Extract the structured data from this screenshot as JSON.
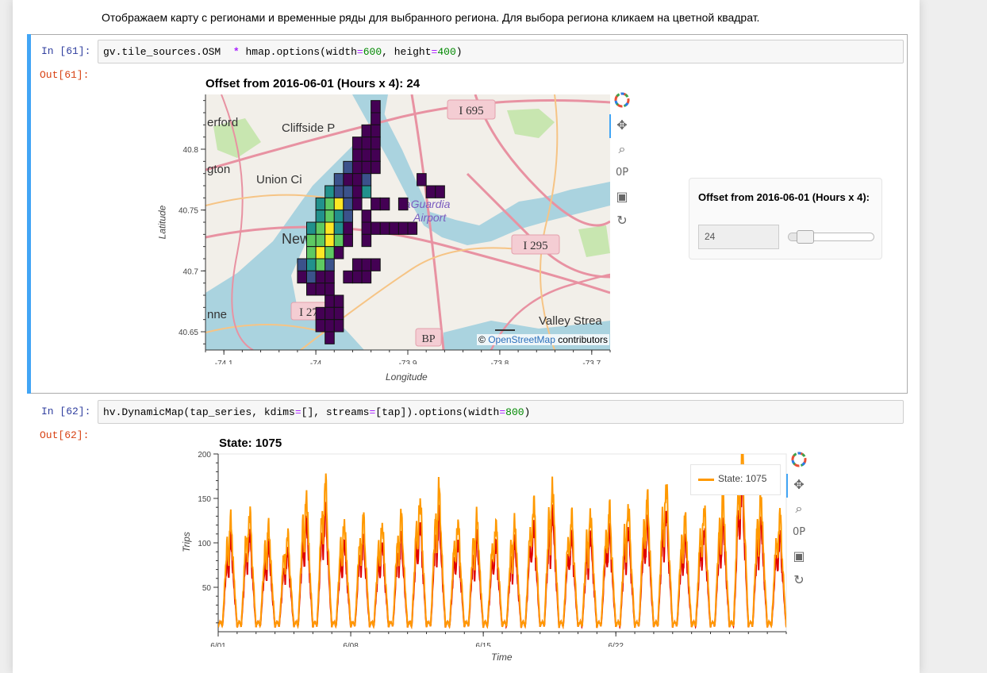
{
  "markdown": {
    "text": "Отображаем карту с регионами и временные ряды для выбранного региона. Для выбора региона кликаем на цветной квадрат."
  },
  "cell61": {
    "in_prompt": "In [61]:",
    "out_prompt": "Out[61]:",
    "code_parts": [
      "gv.tile_sources.OSM",
      "*",
      "hmap.options(width",
      "=",
      "600",
      ", height",
      "=",
      "400",
      ")"
    ]
  },
  "cell62": {
    "in_prompt": "In [62]:",
    "out_prompt": "Out[62]:",
    "code_parts": [
      "hv.DynamicMap(tap_series, kdims",
      "=",
      "[], streams",
      "=",
      "[tap]).options(width",
      "=",
      "800",
      ")"
    ]
  },
  "map_plot": {
    "title": "Offset from 2016-06-01 (Hours x 4): 24",
    "xlabel": "Longitude",
    "ylabel": "Latitude",
    "xticks": [
      "-74.1",
      "-74",
      "-73.9",
      "-73.8",
      "-73.7"
    ],
    "yticks": [
      "40.8",
      "40.75",
      "40.7",
      "40.65"
    ],
    "attribution_prefix": "©",
    "attribution_link": "OpenStreetMap",
    "attribution_suffix": "contributors",
    "map_labels": [
      "erford",
      "Cliffside P",
      "gton",
      "Union Ci",
      "New York",
      "LaGuardia",
      "Airport",
      "nne",
      "Valley Strea"
    ],
    "road_shields": [
      "I 695",
      "I 295",
      "I 27",
      "BP"
    ],
    "colors": {
      "water": "#aad3df",
      "land": "#f2efe9",
      "park": "#c8e6b0",
      "road": "#e892a2",
      "highway": "#f6c485"
    }
  },
  "widget": {
    "title": "Offset from 2016-06-01 (Hours x 4):",
    "value": "24",
    "slider_fraction": 0.13
  },
  "series_plot": {
    "title": "State: 1075",
    "xlabel": "Time",
    "ylabel": "Trips",
    "legend_label": "State: 1075"
  },
  "toolbar_icons": [
    "bokeh-logo-icon",
    "pan-icon",
    "box-zoom-icon",
    "wheel-zoom-icon",
    "save-icon",
    "reset-icon"
  ],
  "chart_data": [
    {
      "type": "heatmap",
      "title": "Offset from 2016-06-01 (Hours x 4): 24",
      "xlabel": "Longitude",
      "ylabel": "Latitude",
      "xlim": [
        -74.12,
        -73.68
      ],
      "ylim": [
        40.635,
        40.845
      ],
      "grid_step": 0.01,
      "palette": "viridis",
      "color_levels": [
        "#440154",
        "#3b528b",
        "#21918c",
        "#5ec962",
        "#fde725"
      ],
      "cells": [
        [
          -73.935,
          40.835,
          0
        ],
        [
          -73.935,
          40.825,
          0
        ],
        [
          -73.945,
          40.815,
          0
        ],
        [
          -73.935,
          40.815,
          0
        ],
        [
          -73.955,
          40.805,
          0
        ],
        [
          -73.945,
          40.805,
          0
        ],
        [
          -73.935,
          40.805,
          0
        ],
        [
          -73.955,
          40.795,
          0
        ],
        [
          -73.945,
          40.795,
          0
        ],
        [
          -73.935,
          40.795,
          0
        ],
        [
          -73.965,
          40.785,
          1
        ],
        [
          -73.955,
          40.785,
          0
        ],
        [
          -73.945,
          40.785,
          0
        ],
        [
          -73.935,
          40.785,
          0
        ],
        [
          -73.975,
          40.775,
          1
        ],
        [
          -73.965,
          40.775,
          0
        ],
        [
          -73.955,
          40.775,
          0
        ],
        [
          -73.945,
          40.775,
          1
        ],
        [
          -73.985,
          40.765,
          2
        ],
        [
          -73.975,
          40.765,
          1
        ],
        [
          -73.965,
          40.765,
          1
        ],
        [
          -73.955,
          40.765,
          0
        ],
        [
          -73.945,
          40.765,
          2
        ],
        [
          -73.885,
          40.775,
          0
        ],
        [
          -73.875,
          40.765,
          0
        ],
        [
          -73.865,
          40.765,
          0
        ],
        [
          -73.995,
          40.755,
          2
        ],
        [
          -73.985,
          40.755,
          3
        ],
        [
          -73.975,
          40.755,
          4
        ],
        [
          -73.965,
          40.755,
          1
        ],
        [
          -73.955,
          40.755,
          0
        ],
        [
          -73.935,
          40.755,
          0
        ],
        [
          -73.925,
          40.755,
          0
        ],
        [
          -73.905,
          40.755,
          0
        ],
        [
          -73.995,
          40.745,
          2
        ],
        [
          -73.985,
          40.745,
          3
        ],
        [
          -73.975,
          40.745,
          2
        ],
        [
          -73.965,
          40.745,
          1
        ],
        [
          -73.945,
          40.745,
          0
        ],
        [
          -74.005,
          40.735,
          2
        ],
        [
          -73.995,
          40.735,
          3
        ],
        [
          -73.985,
          40.735,
          4
        ],
        [
          -73.975,
          40.735,
          2
        ],
        [
          -73.965,
          40.735,
          0
        ],
        [
          -73.945,
          40.735,
          0
        ],
        [
          -73.935,
          40.735,
          0
        ],
        [
          -73.925,
          40.735,
          0
        ],
        [
          -73.915,
          40.735,
          0
        ],
        [
          -73.905,
          40.735,
          0
        ],
        [
          -73.895,
          40.735,
          0
        ],
        [
          -74.005,
          40.725,
          3
        ],
        [
          -73.995,
          40.725,
          3
        ],
        [
          -73.985,
          40.725,
          4
        ],
        [
          -73.975,
          40.725,
          3
        ],
        [
          -73.965,
          40.725,
          0
        ],
        [
          -73.945,
          40.725,
          0
        ],
        [
          -74.005,
          40.715,
          3
        ],
        [
          -73.995,
          40.715,
          4
        ],
        [
          -73.985,
          40.715,
          3
        ],
        [
          -73.975,
          40.715,
          0
        ],
        [
          -74.015,
          40.705,
          1
        ],
        [
          -74.005,
          40.705,
          2
        ],
        [
          -73.995,
          40.705,
          3
        ],
        [
          -73.985,
          40.705,
          1
        ],
        [
          -73.955,
          40.705,
          0
        ],
        [
          -73.945,
          40.705,
          0
        ],
        [
          -73.935,
          40.705,
          0
        ],
        [
          -74.015,
          40.695,
          0
        ],
        [
          -74.005,
          40.695,
          1
        ],
        [
          -73.995,
          40.695,
          0
        ],
        [
          -73.985,
          40.695,
          0
        ],
        [
          -73.965,
          40.695,
          0
        ],
        [
          -73.955,
          40.695,
          0
        ],
        [
          -73.945,
          40.695,
          0
        ],
        [
          -74.005,
          40.685,
          0
        ],
        [
          -73.995,
          40.685,
          0
        ],
        [
          -73.985,
          40.685,
          0
        ],
        [
          -73.985,
          40.675,
          0
        ],
        [
          -73.975,
          40.675,
          0
        ],
        [
          -73.995,
          40.665,
          0
        ],
        [
          -73.985,
          40.665,
          0
        ],
        [
          -73.975,
          40.665,
          0
        ],
        [
          -73.995,
          40.655,
          0
        ],
        [
          -73.985,
          40.655,
          0
        ],
        [
          -73.975,
          40.655,
          0
        ],
        [
          -73.985,
          40.645,
          0
        ]
      ]
    },
    {
      "type": "line",
      "title": "State: 1075",
      "xlabel": "Time",
      "ylabel": "Trips",
      "x_tick_labels": [
        "6/01",
        "6/08",
        "6/15",
        "6/22"
      ],
      "x_tick_days": [
        0,
        7,
        14,
        21
      ],
      "xlim_days": [
        0,
        30
      ],
      "ylim": [
        0,
        200
      ],
      "y_ticks": [
        50,
        100,
        150,
        200
      ],
      "daily_peaks": [
        125,
        135,
        118,
        110,
        150,
        168,
        122,
        128,
        120,
        130,
        148,
        160,
        124,
        128,
        122,
        122,
        145,
        162,
        130,
        132,
        138,
        140,
        150,
        165,
        128,
        140,
        150,
        205,
        150,
        132
      ],
      "series": [
        {
          "name": "State: 1075",
          "color": "#ff9900",
          "peak_scale": 1.0
        },
        {
          "name": "",
          "color": "#e00000",
          "peak_scale": 0.82
        }
      ]
    }
  ]
}
